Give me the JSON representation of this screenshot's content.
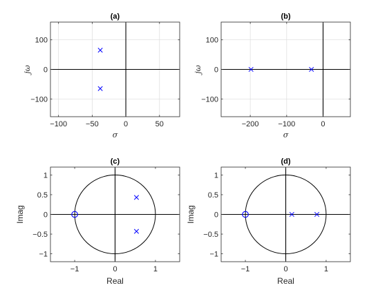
{
  "chart_data": [
    {
      "panel": "a",
      "type": "scatter",
      "title": "(a)",
      "xlabel": "σ",
      "ylabel": "jω",
      "xlim": [
        -112,
        80
      ],
      "ylim": [
        -160,
        160
      ],
      "xticks": [
        -100,
        -50,
        0,
        50
      ],
      "yticks": [
        -100,
        0,
        100
      ],
      "grid": true,
      "unit_circle": false,
      "poles": [
        {
          "x": -38,
          "y": 65
        },
        {
          "x": -38,
          "y": -65
        }
      ],
      "zeros": []
    },
    {
      "panel": "b",
      "type": "scatter",
      "title": "(b)",
      "xlabel": "σ",
      "ylabel": "jω",
      "xlim": [
        -280,
        75
      ],
      "ylim": [
        -160,
        160
      ],
      "xticks": [
        -200,
        -100,
        0
      ],
      "yticks": [
        -100,
        0,
        100
      ],
      "grid": true,
      "unit_circle": false,
      "poles": [
        {
          "x": -198,
          "y": 0
        },
        {
          "x": -32,
          "y": 0
        }
      ],
      "zeros": []
    },
    {
      "panel": "c",
      "type": "scatter",
      "title": "(c)",
      "xlabel": "Real",
      "ylabel": "Imag",
      "xlim": [
        -1.6,
        1.6
      ],
      "ylim": [
        -1.2,
        1.2
      ],
      "xticks": [
        -1,
        0,
        1
      ],
      "yticks": [
        -1,
        -0.5,
        0,
        0.5,
        1
      ],
      "grid": false,
      "unit_circle": true,
      "poles": [
        {
          "x": 0.53,
          "y": 0.43
        },
        {
          "x": 0.53,
          "y": -0.43
        }
      ],
      "zeros": [
        {
          "x": -1,
          "y": 0
        }
      ]
    },
    {
      "panel": "d",
      "type": "scatter",
      "title": "(d)",
      "xlabel": "Real",
      "ylabel": "Imag",
      "xlim": [
        -1.6,
        1.6
      ],
      "ylim": [
        -1.2,
        1.2
      ],
      "xticks": [
        -1,
        0,
        1
      ],
      "yticks": [
        -1,
        -0.5,
        0,
        0.5,
        1
      ],
      "grid": false,
      "unit_circle": true,
      "poles": [
        {
          "x": 0.15,
          "y": 0
        },
        {
          "x": 0.77,
          "y": 0
        }
      ],
      "zeros": [
        {
          "x": -1,
          "y": 0
        }
      ]
    }
  ],
  "colors": {
    "marker": "#0000ff",
    "axis": "#262626",
    "zero_line": "#000000",
    "grid": "#dcdcdc"
  }
}
